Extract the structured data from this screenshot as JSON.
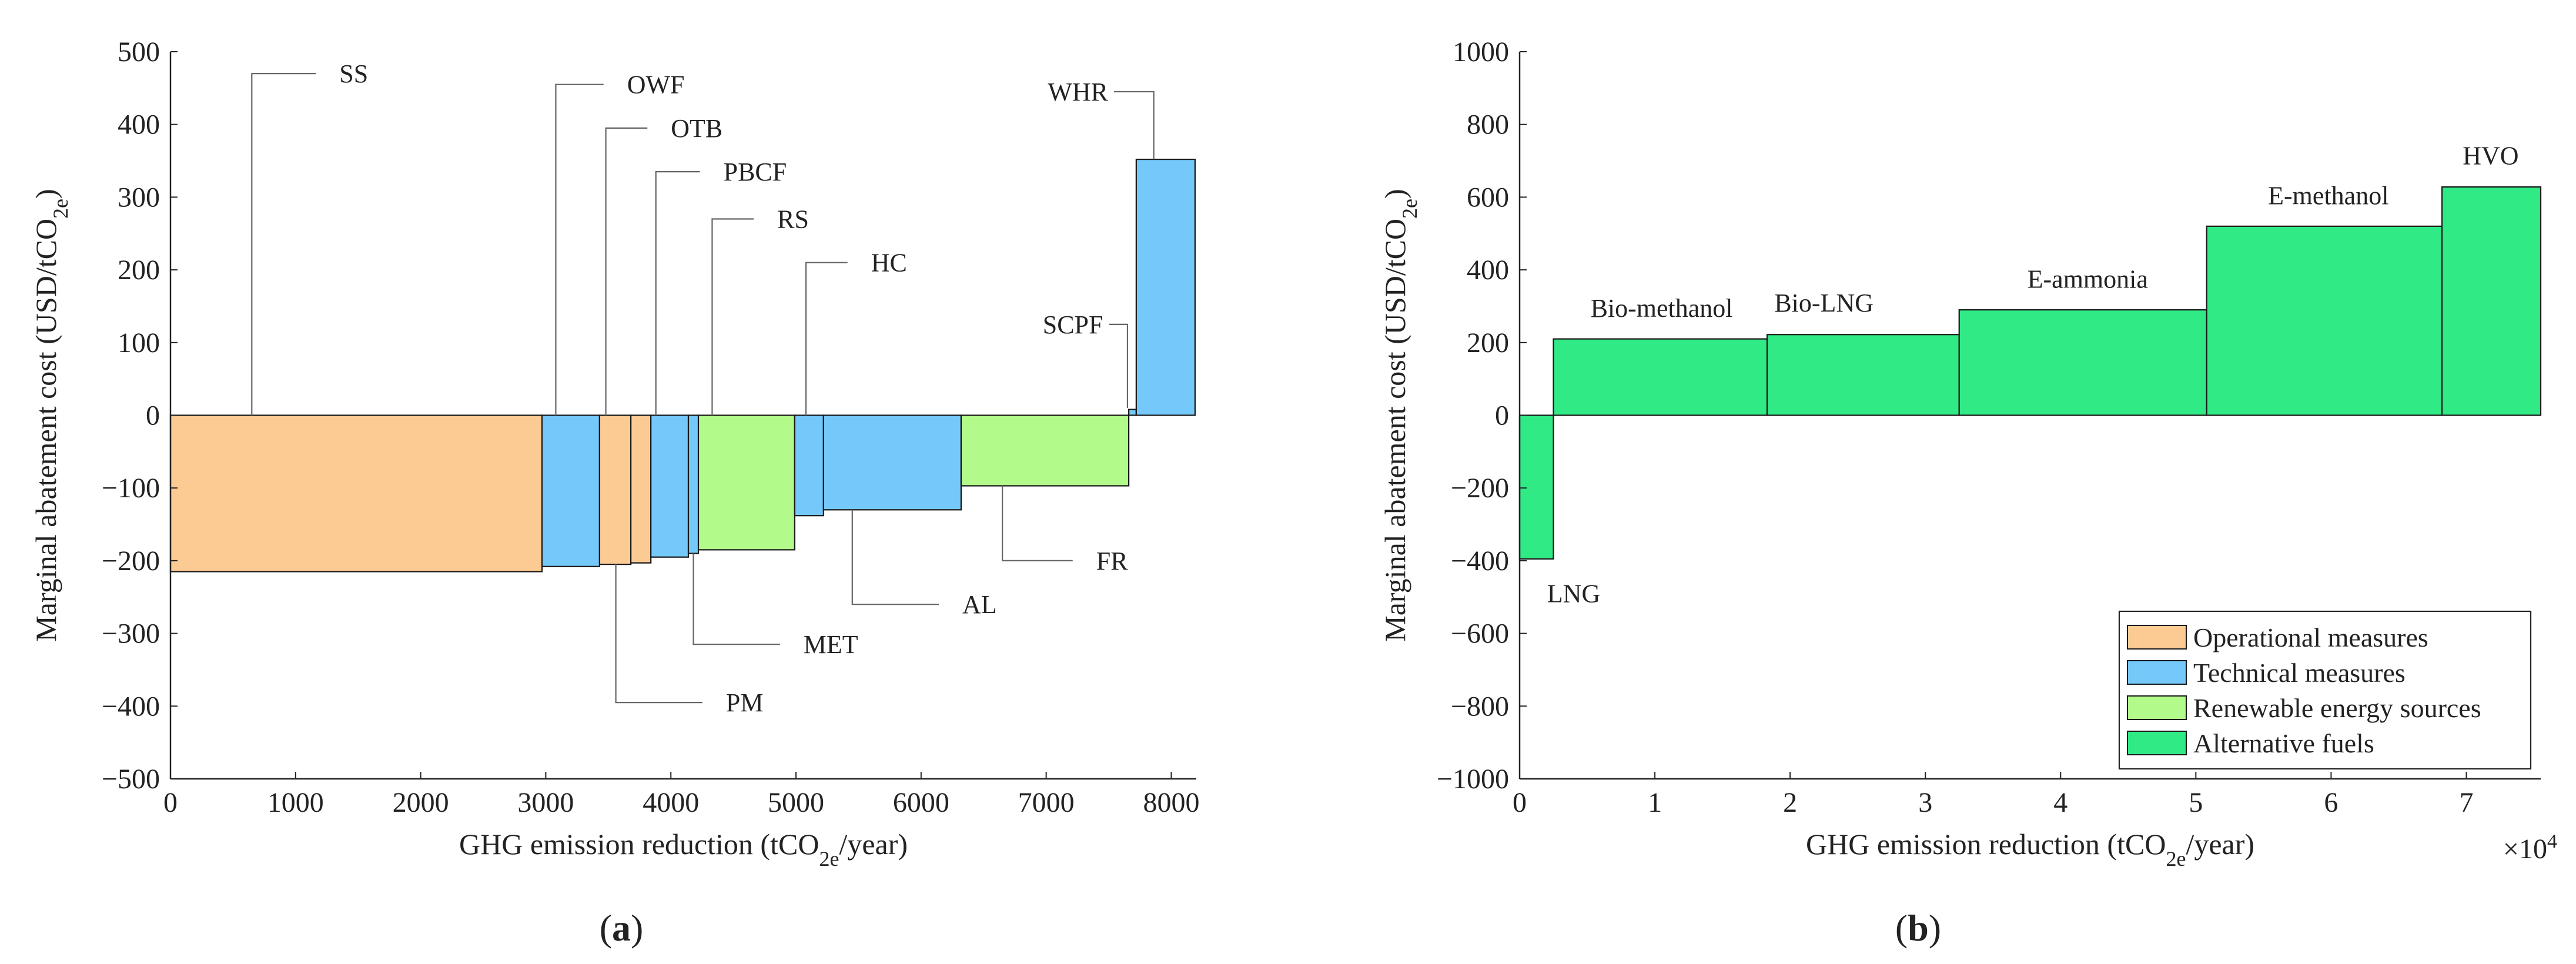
{
  "colors": {
    "operational": "#FCCB94",
    "technical": "#74C9FA",
    "renewable": "#B2FA8A",
    "alternative": "#30EA86",
    "axis": "#222222",
    "leader": "#666666"
  },
  "panel_labels": {
    "a": "a",
    "b": "b"
  },
  "chart_data": [
    {
      "type": "bar",
      "chart_kind": "marginal abatement cost curve",
      "panel": "a",
      "xlabel": "GHG emission reduction (tCO2e/year)",
      "ylabel": "Marginal abatement cost (USD/tCO2e)",
      "xlim": [
        0,
        8200
      ],
      "ylim": [
        -500,
        500
      ],
      "xticks": [
        0,
        1000,
        2000,
        3000,
        4000,
        5000,
        6000,
        7000,
        8000
      ],
      "yticks": [
        -500,
        -400,
        -300,
        -200,
        -100,
        0,
        100,
        200,
        300,
        400,
        500
      ],
      "series": [
        {
          "name": "SS",
          "category": "operational",
          "x_start": 0,
          "x_end": 2970,
          "value": -215
        },
        {
          "name": "OWF",
          "category": "technical",
          "x_start": 2970,
          "x_end": 3430,
          "value": -208
        },
        {
          "name": "PM",
          "category": "operational",
          "x_start": 3430,
          "x_end": 3680,
          "value": -205
        },
        {
          "name": "OTB",
          "category": "operational",
          "x_start": 3680,
          "x_end": 3840,
          "value": -203
        },
        {
          "name": "PBCF",
          "category": "technical",
          "x_start": 3840,
          "x_end": 4140,
          "value": -195
        },
        {
          "name": "MET",
          "category": "technical",
          "x_start": 4140,
          "x_end": 4220,
          "value": -190
        },
        {
          "name": "RS",
          "category": "renewable",
          "x_start": 4220,
          "x_end": 4990,
          "value": -185
        },
        {
          "name": "HC",
          "category": "technical",
          "x_start": 4990,
          "x_end": 5220,
          "value": -138
        },
        {
          "name": "AL",
          "category": "technical",
          "x_start": 5220,
          "x_end": 6320,
          "value": -130
        },
        {
          "name": "FR",
          "category": "renewable",
          "x_start": 6320,
          "x_end": 7660,
          "value": -97
        },
        {
          "name": "SCPF",
          "category": "technical",
          "x_start": 7660,
          "x_end": 7720,
          "value": 8
        },
        {
          "name": "WHR",
          "category": "technical",
          "x_start": 7720,
          "x_end": 8190,
          "value": 352
        }
      ],
      "annotations": [
        {
          "text": "SS",
          "anchor_x": 650,
          "anchor_y": 0,
          "label_x": 1350,
          "label_y": 470
        },
        {
          "text": "OWF",
          "anchor_x": 3080,
          "anchor_y": 0,
          "label_x": 3650,
          "label_y": 455
        },
        {
          "text": "OTB",
          "anchor_x": 3480,
          "anchor_y": 0,
          "label_x": 4000,
          "label_y": 395
        },
        {
          "text": "PBCF",
          "anchor_x": 3880,
          "anchor_y": 0,
          "label_x": 4420,
          "label_y": 335
        },
        {
          "text": "RS",
          "anchor_x": 4330,
          "anchor_y": 0,
          "label_x": 4850,
          "label_y": 270
        },
        {
          "text": "HC",
          "anchor_x": 5080,
          "anchor_y": 0,
          "label_x": 5600,
          "label_y": 210
        },
        {
          "text": "SCPF",
          "anchor_x": 7650,
          "anchor_y": 10,
          "label_x": 7380,
          "label_y": 125
        },
        {
          "text": "WHR",
          "anchor_x": 7860,
          "anchor_y": 352,
          "label_x": 7420,
          "label_y": 445
        },
        {
          "text": "FR",
          "anchor_x": 6650,
          "anchor_y": -97,
          "label_x": 7400,
          "label_y": -200
        },
        {
          "text": "AL",
          "anchor_x": 5450,
          "anchor_y": -130,
          "label_x": 6330,
          "label_y": -260
        },
        {
          "text": "MET",
          "anchor_x": 4180,
          "anchor_y": -190,
          "label_x": 5060,
          "label_y": -315
        },
        {
          "text": "PM",
          "anchor_x": 3560,
          "anchor_y": -205,
          "label_x": 4440,
          "label_y": -395
        }
      ]
    },
    {
      "type": "bar",
      "chart_kind": "marginal abatement cost curve",
      "panel": "b",
      "xlabel": "GHG emission reduction (tCO2e/year)",
      "ylabel": "Marginal abatement cost (USD/tCO2e)",
      "x_multiplier": "×10",
      "x_multiplier_exp": "4",
      "xlim": [
        0,
        7.55
      ],
      "ylim": [
        -1000,
        1000
      ],
      "xticks": [
        0,
        1,
        2,
        3,
        4,
        5,
        6,
        7
      ],
      "yticks": [
        -1000,
        -800,
        -600,
        -400,
        -200,
        0,
        200,
        400,
        600,
        800,
        1000
      ],
      "series": [
        {
          "name": "LNG",
          "category": "alternative",
          "x_start": 0,
          "x_end": 0.25,
          "value": -395
        },
        {
          "name": "Bio-methanol",
          "category": "alternative",
          "x_start": 0.25,
          "x_end": 1.83,
          "value": 210
        },
        {
          "name": "Bio-LNG",
          "category": "alternative",
          "x_start": 1.83,
          "x_end": 3.25,
          "value": 222
        },
        {
          "name": "E-ammonia",
          "category": "alternative",
          "x_start": 3.25,
          "x_end": 5.08,
          "value": 290
        },
        {
          "name": "E-methanol",
          "category": "alternative",
          "x_start": 5.08,
          "x_end": 6.82,
          "value": 520
        },
        {
          "name": "HVO",
          "category": "alternative",
          "x_start": 6.82,
          "x_end": 7.55,
          "value": 628
        }
      ],
      "annotations": [
        {
          "text": "LNG",
          "label_x": 0.4,
          "label_y": -490
        },
        {
          "text": "Bio-methanol",
          "label_x": 1.05,
          "label_y": 295
        },
        {
          "text": "Bio-LNG",
          "label_x": 2.25,
          "label_y": 310
        },
        {
          "text": "E-ammonia",
          "label_x": 4.2,
          "label_y": 375
        },
        {
          "text": "E-methanol",
          "label_x": 5.98,
          "label_y": 605
        },
        {
          "text": "HVO",
          "label_x": 7.18,
          "label_y": 715
        }
      ],
      "legend": {
        "placement": "bottom-right",
        "entries": [
          {
            "label": "Operational measures",
            "category": "operational"
          },
          {
            "label": "Technical measures",
            "category": "technical"
          },
          {
            "label": "Renewable energy sources",
            "category": "renewable"
          },
          {
            "label": "Alternative fuels",
            "category": "alternative"
          }
        ]
      }
    }
  ]
}
